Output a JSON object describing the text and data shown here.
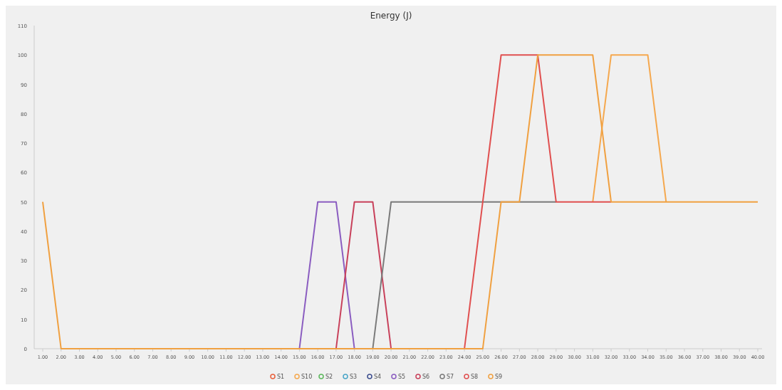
{
  "chart_data": {
    "type": "line",
    "title": "Energy (J)",
    "categories": [
      "1.00",
      "2.00",
      "3.00",
      "4.00",
      "5.00",
      "6.00",
      "7.00",
      "8.00",
      "9.00",
      "10.00",
      "11.00",
      "12.00",
      "13.00",
      "14.00",
      "15.00",
      "16.00",
      "17.00",
      "18.00",
      "19.00",
      "20.00",
      "21.00",
      "22.00",
      "23.00",
      "24.00",
      "25.00",
      "26.00",
      "27.00",
      "28.00",
      "29.00",
      "30.00",
      "31.00",
      "32.00",
      "33.00",
      "34.00",
      "35.00",
      "36.00",
      "37.00",
      "38.00",
      "39.00",
      "40.00"
    ],
    "ylim": [
      0,
      110
    ],
    "yticks": [
      0,
      10,
      20,
      30,
      40,
      50,
      60,
      70,
      80,
      90,
      100,
      110
    ],
    "legend": "bottom",
    "grid": false,
    "series": [
      {
        "name": "S1",
        "color": "#e8613c",
        "values": [
          null,
          null,
          null,
          null,
          null,
          null,
          null,
          null,
          null,
          null,
          null,
          null,
          null,
          null,
          null,
          null,
          null,
          null,
          null,
          null,
          null,
          null,
          null,
          null,
          null,
          null,
          null,
          null,
          null,
          null,
          null,
          null,
          null,
          null,
          null,
          null,
          null,
          null,
          null,
          null
        ]
      },
      {
        "name": "S10",
        "color": "#f5a84e",
        "values": [
          null,
          null,
          null,
          null,
          null,
          null,
          null,
          null,
          null,
          null,
          null,
          null,
          null,
          null,
          null,
          null,
          null,
          null,
          null,
          null,
          null,
          null,
          null,
          null,
          null,
          null,
          null,
          null,
          null,
          null,
          50,
          100,
          100,
          100,
          50,
          null,
          null,
          null,
          null,
          null
        ]
      },
      {
        "name": "S2",
        "color": "#5cb85c",
        "values": [
          null,
          null,
          null,
          null,
          null,
          null,
          null,
          null,
          null,
          null,
          null,
          null,
          null,
          null,
          null,
          null,
          null,
          null,
          null,
          null,
          null,
          null,
          null,
          null,
          null,
          null,
          null,
          null,
          null,
          null,
          null,
          null,
          null,
          null,
          null,
          null,
          null,
          null,
          null,
          null
        ]
      },
      {
        "name": "S3",
        "color": "#4aa6c8",
        "values": [
          null,
          null,
          null,
          null,
          null,
          null,
          null,
          null,
          null,
          null,
          null,
          null,
          null,
          null,
          null,
          null,
          null,
          null,
          null,
          null,
          null,
          null,
          null,
          null,
          null,
          null,
          null,
          null,
          null,
          null,
          null,
          null,
          null,
          null,
          null,
          null,
          null,
          null,
          null,
          null
        ]
      },
      {
        "name": "S4",
        "color": "#3d4f8f",
        "values": [
          null,
          null,
          null,
          null,
          null,
          null,
          null,
          null,
          null,
          null,
          null,
          null,
          null,
          null,
          null,
          null,
          null,
          null,
          null,
          null,
          null,
          null,
          null,
          null,
          null,
          null,
          null,
          null,
          null,
          null,
          null,
          null,
          null,
          null,
          null,
          null,
          null,
          null,
          null,
          null
        ]
      },
      {
        "name": "S5",
        "color": "#8a5cc0",
        "values": [
          null,
          null,
          null,
          null,
          null,
          null,
          null,
          null,
          null,
          null,
          null,
          null,
          null,
          null,
          0,
          50,
          50,
          0,
          null,
          null,
          null,
          null,
          null,
          null,
          null,
          null,
          null,
          null,
          null,
          null,
          null,
          null,
          null,
          null,
          null,
          null,
          null,
          null,
          null,
          null
        ]
      },
      {
        "name": "S6",
        "color": "#c8405a",
        "values": [
          null,
          null,
          null,
          null,
          null,
          null,
          null,
          null,
          null,
          null,
          null,
          null,
          null,
          null,
          null,
          null,
          0,
          50,
          50,
          0,
          null,
          null,
          null,
          null,
          null,
          null,
          null,
          null,
          null,
          null,
          null,
          null,
          null,
          null,
          null,
          null,
          null,
          null,
          null,
          null
        ]
      },
      {
        "name": "S7",
        "color": "#7a7a7a",
        "values": [
          null,
          null,
          null,
          null,
          null,
          null,
          null,
          null,
          null,
          null,
          null,
          null,
          null,
          null,
          null,
          null,
          null,
          null,
          0,
          50,
          50,
          50,
          50,
          50,
          50,
          50,
          50,
          50,
          50,
          null,
          null,
          null,
          null,
          null,
          null,
          null,
          null,
          null,
          null,
          null
        ]
      },
      {
        "name": "S8",
        "color": "#e04f4f",
        "values": [
          null,
          null,
          null,
          null,
          null,
          null,
          null,
          null,
          null,
          null,
          null,
          null,
          null,
          null,
          null,
          null,
          null,
          null,
          null,
          null,
          null,
          null,
          null,
          0,
          50,
          100,
          100,
          100,
          50,
          50,
          50,
          50,
          null,
          null,
          null,
          null,
          null,
          null,
          null,
          null
        ]
      },
      {
        "name": "S9",
        "color": "#f0a040",
        "values": [
          50,
          0,
          0,
          0,
          0,
          0,
          0,
          0,
          0,
          0,
          0,
          0,
          0,
          0,
          0,
          0,
          0,
          0,
          0,
          0,
          0,
          0,
          0,
          0,
          0,
          50,
          50,
          100,
          100,
          100,
          100,
          50,
          50,
          50,
          50,
          50,
          50,
          50,
          50,
          50
        ]
      }
    ]
  }
}
